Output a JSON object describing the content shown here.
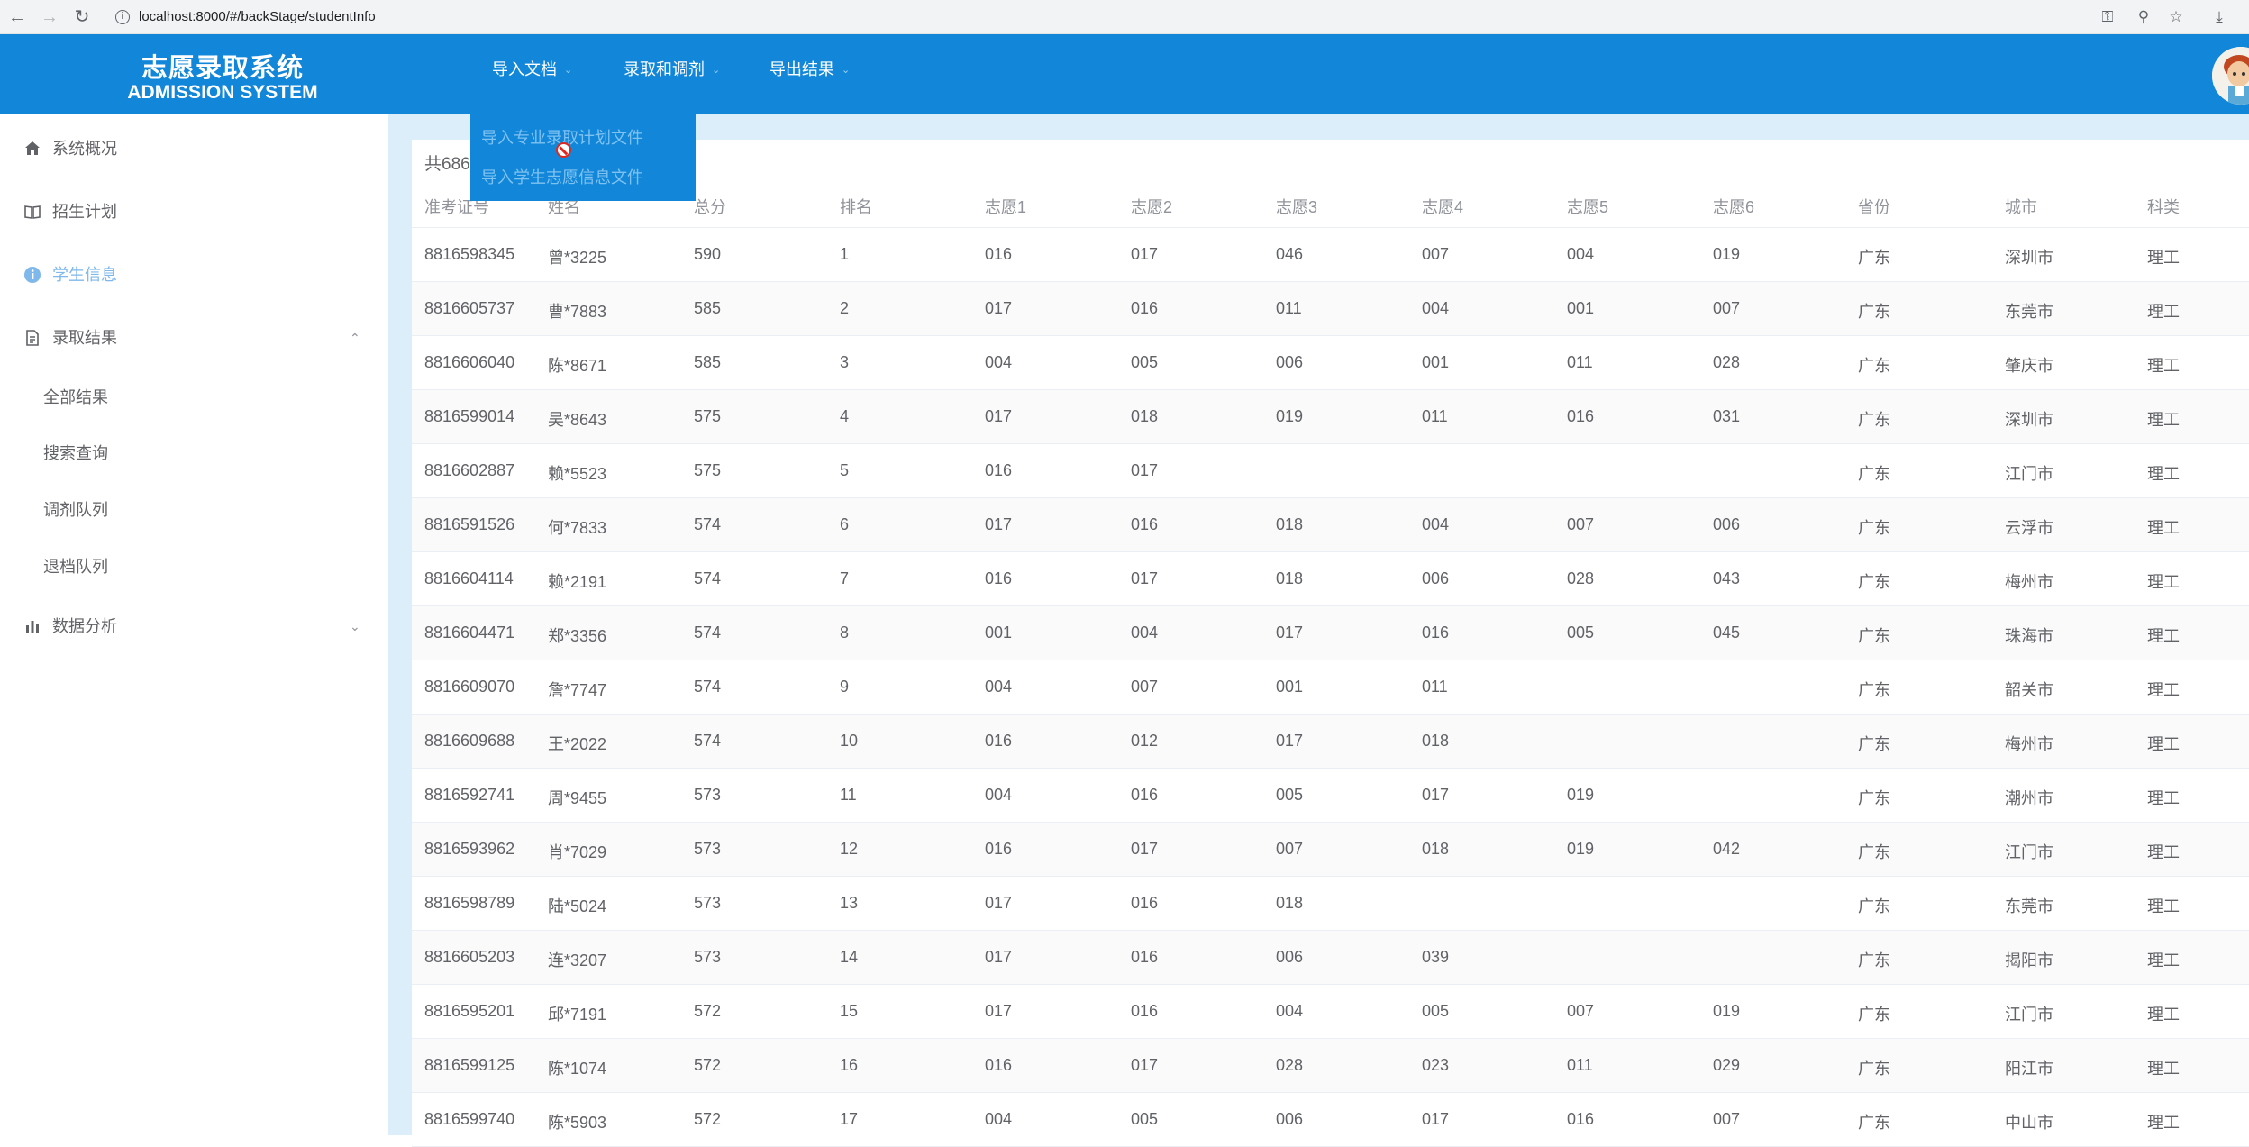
{
  "browser": {
    "url": "localhost:8000/#/backStage/studentInfo"
  },
  "header": {
    "logo_cn": "志愿录取系统",
    "logo_en": "ADMISSION SYSTEM",
    "menus": [
      "导入文档",
      "录取和调剂",
      "导出结果"
    ]
  },
  "dropdown": {
    "items": [
      "导入专业录取计划文件",
      "导入学生志愿信息文件"
    ]
  },
  "sidebar": {
    "items": [
      {
        "label": "系统概况",
        "icon": "home-icon"
      },
      {
        "label": "招生计划",
        "icon": "book-icon"
      },
      {
        "label": "学生信息",
        "icon": "info-icon"
      },
      {
        "label": "录取结果",
        "icon": "document-icon"
      },
      {
        "label": "数据分析",
        "icon": "bar-chart-icon"
      }
    ],
    "subitems": [
      "全部结果",
      "搜索查询",
      "调剂队列",
      "退档队列"
    ]
  },
  "table": {
    "total_text": "共686",
    "columns": [
      "准考证号",
      "姓名",
      "总分",
      "排名",
      "志愿1",
      "志愿2",
      "志愿3",
      "志愿4",
      "志愿5",
      "志愿6",
      "省份",
      "城市",
      "科类"
    ],
    "rows": [
      [
        "8816598345",
        "曾*3225",
        "590",
        "1",
        "016",
        "017",
        "046",
        "007",
        "004",
        "019",
        "广东",
        "深圳市",
        "理工"
      ],
      [
        "8816605737",
        "曹*7883",
        "585",
        "2",
        "017",
        "016",
        "011",
        "004",
        "001",
        "007",
        "广东",
        "东莞市",
        "理工"
      ],
      [
        "8816606040",
        "陈*8671",
        "585",
        "3",
        "004",
        "005",
        "006",
        "001",
        "011",
        "028",
        "广东",
        "肇庆市",
        "理工"
      ],
      [
        "8816599014",
        "吴*8643",
        "575",
        "4",
        "017",
        "018",
        "019",
        "011",
        "016",
        "031",
        "广东",
        "深圳市",
        "理工"
      ],
      [
        "8816602887",
        "赖*5523",
        "575",
        "5",
        "016",
        "017",
        "",
        "",
        "",
        "",
        "广东",
        "江门市",
        "理工"
      ],
      [
        "8816591526",
        "何*7833",
        "574",
        "6",
        "017",
        "016",
        "018",
        "004",
        "007",
        "006",
        "广东",
        "云浮市",
        "理工"
      ],
      [
        "8816604114",
        "赖*2191",
        "574",
        "7",
        "016",
        "017",
        "018",
        "006",
        "028",
        "043",
        "广东",
        "梅州市",
        "理工"
      ],
      [
        "8816604471",
        "郑*3356",
        "574",
        "8",
        "001",
        "004",
        "017",
        "016",
        "005",
        "045",
        "广东",
        "珠海市",
        "理工"
      ],
      [
        "8816609070",
        "詹*7747",
        "574",
        "9",
        "004",
        "007",
        "001",
        "011",
        "",
        "",
        "广东",
        "韶关市",
        "理工"
      ],
      [
        "8816609688",
        "王*2022",
        "574",
        "10",
        "016",
        "012",
        "017",
        "018",
        "",
        "",
        "广东",
        "梅州市",
        "理工"
      ],
      [
        "8816592741",
        "周*9455",
        "573",
        "11",
        "004",
        "016",
        "005",
        "017",
        "019",
        "",
        "广东",
        "潮州市",
        "理工"
      ],
      [
        "8816593962",
        "肖*7029",
        "573",
        "12",
        "016",
        "017",
        "007",
        "018",
        "019",
        "042",
        "广东",
        "江门市",
        "理工"
      ],
      [
        "8816598789",
        "陆*5024",
        "573",
        "13",
        "017",
        "016",
        "018",
        "",
        "",
        "",
        "广东",
        "东莞市",
        "理工"
      ],
      [
        "8816605203",
        "连*3207",
        "573",
        "14",
        "017",
        "016",
        "006",
        "039",
        "",
        "",
        "广东",
        "揭阳市",
        "理工"
      ],
      [
        "8816595201",
        "邱*7191",
        "572",
        "15",
        "017",
        "016",
        "004",
        "005",
        "007",
        "019",
        "广东",
        "江门市",
        "理工"
      ],
      [
        "8816599125",
        "陈*1074",
        "572",
        "16",
        "016",
        "017",
        "028",
        "023",
        "011",
        "029",
        "广东",
        "阳江市",
        "理工"
      ],
      [
        "8816599740",
        "陈*5903",
        "572",
        "17",
        "004",
        "005",
        "006",
        "017",
        "016",
        "007",
        "广东",
        "中山市",
        "理工"
      ]
    ]
  },
  "colors": {
    "header_bg": "#1287d9",
    "active_menu": "#7fb8ea",
    "main_bg": "#dbeefa"
  }
}
